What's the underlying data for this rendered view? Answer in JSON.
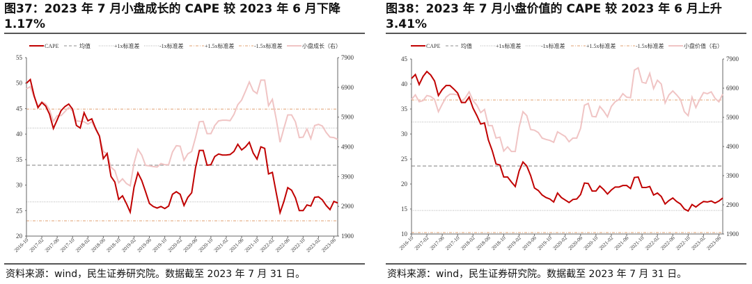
{
  "source": "资料来源：wind，民生证券研究院。数据截至 2023 年 7 月 31 日。",
  "colors": {
    "cape": "#c00000",
    "right": "#f0c4c4",
    "mean": "#8c8c8c",
    "sd1": "#b0b0b0",
    "sd15": "#e0a070"
  },
  "chart_data": [
    {
      "type": "line",
      "title": "图37：2023 年 7 月小盘成长的 CAPE 较 2023 年 6 月下降 1.17%",
      "legend": [
        "CAPE",
        "均值",
        "+1x标准差",
        "-1x标准差",
        "+1.5x标准差",
        "-1.5x标准差",
        "小盘成长（右）"
      ],
      "legend_position": "top",
      "x_start": "2016-10",
      "x_end": "2023-07",
      "x_freq": "monthly",
      "xticks": [
        "2016-10",
        "2017-02",
        "2017-06",
        "2017-10",
        "2018-02",
        "2018-06",
        "2018-10",
        "2019-02",
        "2019-06",
        "2019-10",
        "2020-02",
        "2020-06",
        "2020-10",
        "2021-02",
        "2021-06",
        "2021-10",
        "2022-02",
        "2022-06",
        "2022-10",
        "2023-02",
        "2023-06"
      ],
      "ylim": [
        20,
        55
      ],
      "yticks": [
        20,
        25,
        30,
        35,
        40,
        45,
        50,
        55
      ],
      "y2lim": [
        1900,
        7900
      ],
      "y2ticks": [
        1900,
        2900,
        3900,
        4900,
        5900,
        6900,
        7900
      ],
      "ref_lines": {
        "mean": 33.9,
        "plus1": 41.2,
        "minus1": 26.7,
        "plus15": 44.9,
        "minus15": 23.0
      },
      "series": [
        {
          "name": "CAPE",
          "axis": "left",
          "values": [
            50.0,
            50.7,
            47.5,
            45.2,
            46.2,
            45.5,
            43.9,
            41.1,
            42.8,
            44.6,
            45.4,
            45.9,
            44.9,
            41.7,
            41.2,
            44.2,
            42.6,
            43.0,
            41.1,
            39.6,
            35.2,
            36.2,
            31.7,
            30.6,
            27.2,
            27.9,
            26.4,
            24.7,
            29.6,
            32.4,
            30.9,
            28.7,
            26.4,
            25.8,
            25.5,
            25.8,
            25.4,
            25.9,
            28.2,
            28.7,
            28.2,
            26.0,
            27.6,
            28.5,
            33.4,
            36.8,
            36.8,
            33.9,
            34.0,
            35.6,
            36.1,
            35.9,
            35.9,
            36.0,
            36.6,
            38.0,
            36.9,
            37.5,
            38.4,
            36.3,
            35.1,
            37.5,
            37.2,
            32.2,
            32.5,
            28.5,
            24.6,
            26.8,
            29.5,
            29.0,
            27.5,
            25.0,
            25.0,
            26.1,
            25.9,
            27.6,
            27.7,
            27.1,
            26.0,
            25.2,
            26.8,
            26.5
          ]
        },
        {
          "name": "小盘成长（右）",
          "axis": "right",
          "values": [
            6848,
            6926,
            6575,
            6264,
            6420,
            6342,
            6147,
            5757,
            5952,
            5952,
            6084,
            6225,
            6108,
            5773,
            5757,
            5742,
            5664,
            5742,
            5485,
            5250,
            4744,
            4666,
            4215,
            4105,
            3692,
            3825,
            3669,
            3590,
            4356,
            4822,
            4627,
            4277,
            4261,
            4238,
            4222,
            4340,
            4300,
            4300,
            4728,
            4939,
            4923,
            4449,
            4666,
            4744,
            5212,
            5742,
            5757,
            5344,
            5344,
            5617,
            5773,
            5796,
            5796,
            5781,
            5990,
            6318,
            6474,
            6770,
            7082,
            6786,
            6692,
            7144,
            7144,
            6287,
            6498,
            5835,
            5056,
            5523,
            5975,
            5975,
            5742,
            5212,
            5227,
            5508,
            5173,
            5617,
            5656,
            5601,
            5383,
            5227,
            5212,
            5150
          ]
        }
      ]
    },
    {
      "type": "line",
      "title": "图38：2023 年 7 月小盘价值的 CAPE 较 2023 年 6 月上升 3.41%",
      "legend": [
        "CAPE",
        "均值",
        "+1x标准差",
        "-1x标准差",
        "+1.5x标准差",
        "-1.5x标准差",
        "小盘价值（右）"
      ],
      "legend_position": "top",
      "x_start": "2016-10",
      "x_end": "2023-07",
      "x_freq": "monthly",
      "xticks": [
        "2016-10",
        "2017-02",
        "2017-06",
        "2017-10",
        "2018-02",
        "2018-06",
        "2018-10",
        "2019-02",
        "2019-06",
        "2019-10",
        "2020-02",
        "2020-06",
        "2020-10",
        "2021-02",
        "2021-06",
        "2021-10",
        "2022-02",
        "2022-06",
        "2022-10",
        "2023-02",
        "2023-06"
      ],
      "ylim": [
        10,
        45
      ],
      "yticks": [
        10,
        15,
        20,
        25,
        30,
        35,
        40,
        45
      ],
      "y2lim": [
        1900,
        7900
      ],
      "y2ticks": [
        1900,
        2900,
        3900,
        4900,
        5900,
        6900,
        7900
      ],
      "ref_lines": {
        "mean": 23.6,
        "plus1": 32.4,
        "minus1": 14.7,
        "plus15": 36.8,
        "minus15": 10.3
      },
      "series": [
        {
          "name": "CAPE",
          "axis": "left",
          "values": [
            41.1,
            41.9,
            39.9,
            41.5,
            42.5,
            41.8,
            40.6,
            37.7,
            38.9,
            39.7,
            39.7,
            39.0,
            38.2,
            36.3,
            36.3,
            37.4,
            35.2,
            33.7,
            32.0,
            32.2,
            28.8,
            26.7,
            24.0,
            23.8,
            21.4,
            21.4,
            20.4,
            19.5,
            22.6,
            24.4,
            23.6,
            21.7,
            19.2,
            18.7,
            17.8,
            17.3,
            17.0,
            16.4,
            18.2,
            17.3,
            16.8,
            16.3,
            16.9,
            17.0,
            17.9,
            20.2,
            20.1,
            18.6,
            18.6,
            19.6,
            18.9,
            18.0,
            18.8,
            19.4,
            19.4,
            19.7,
            19.7,
            19.1,
            21.3,
            21.4,
            19.3,
            19.3,
            19.5,
            17.8,
            18.2,
            17.5,
            16.0,
            16.7,
            17.2,
            16.5,
            16.0,
            15.0,
            14.6,
            15.9,
            15.4,
            16.0,
            16.5,
            16.4,
            16.6,
            16.2,
            16.6,
            17.2
          ]
        },
        {
          "name": "小盘价值（右）",
          "axis": "right",
          "values": [
            6513,
            6671,
            6434,
            6474,
            6648,
            6616,
            6513,
            6093,
            6354,
            6592,
            6695,
            6695,
            6671,
            6434,
            6568,
            6775,
            6473,
            6315,
            6061,
            6172,
            5617,
            5617,
            5189,
            5221,
            4745,
            4888,
            4730,
            4730,
            5562,
            6093,
            5958,
            5483,
            5459,
            5380,
            5189,
            5142,
            5110,
            5047,
            5403,
            5324,
            5245,
            5063,
            5189,
            5189,
            5522,
            6315,
            6378,
            5934,
            5918,
            6275,
            6117,
            5918,
            6275,
            6434,
            6513,
            6711,
            6592,
            6576,
            7520,
            7599,
            7107,
            7068,
            7409,
            6885,
            7171,
            7044,
            6394,
            6671,
            6806,
            6671,
            6513,
            6093,
            5958,
            6592,
            6236,
            6513,
            6751,
            6711,
            6775,
            6553,
            6434,
            6695
          ]
        }
      ]
    }
  ]
}
